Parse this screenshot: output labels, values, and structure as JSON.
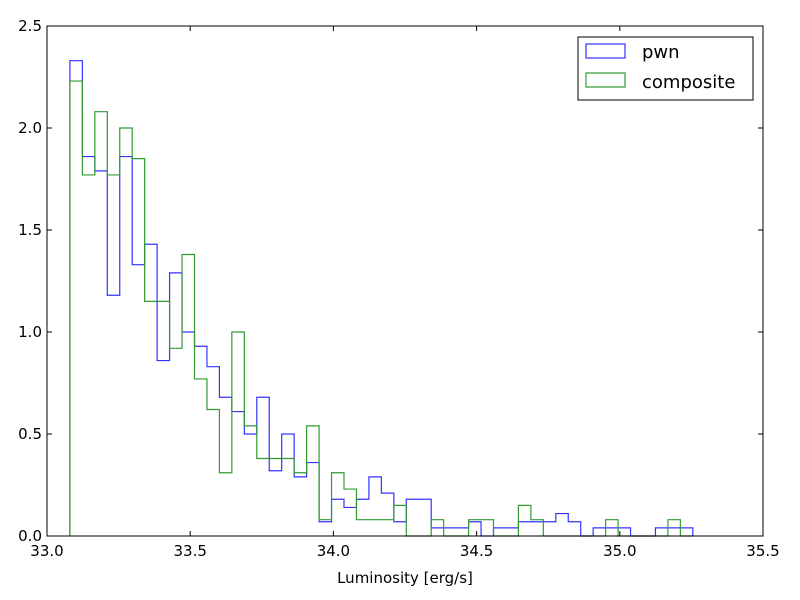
{
  "chart_data": {
    "type": "histogram",
    "xlabel": "Luminosity [erg/s]",
    "ylabel": "",
    "xlim": [
      33.0,
      35.5
    ],
    "ylim": [
      0.0,
      2.5
    ],
    "x_ticks": [
      33.0,
      33.5,
      34.0,
      34.5,
      35.0,
      35.5
    ],
    "x_tick_labels": [
      "33.0",
      "33.5",
      "34.0",
      "34.5",
      "35.0",
      "35.5"
    ],
    "y_ticks": [
      0.0,
      0.5,
      1.0,
      1.5,
      2.0,
      2.5
    ],
    "y_tick_labels": [
      "0.0",
      "0.5",
      "1.0",
      "1.5",
      "2.0",
      "2.5"
    ],
    "legend_position": "top-right",
    "series": [
      {
        "name": "pwn",
        "color": "#3333ff",
        "bin_start": 33.08,
        "bin_width": 0.0435,
        "values": [
          2.33,
          1.86,
          1.79,
          1.18,
          1.86,
          1.33,
          1.43,
          0.86,
          1.29,
          1.0,
          0.93,
          0.83,
          0.68,
          0.61,
          0.5,
          0.68,
          0.32,
          0.5,
          0.29,
          0.36,
          0.07,
          0.18,
          0.14,
          0.18,
          0.29,
          0.21,
          0.07,
          0.18,
          0.18,
          0.04,
          0.04,
          0.04,
          0.07,
          0.0,
          0.04,
          0.04,
          0.07,
          0.07,
          0.07,
          0.11,
          0.07,
          0.0,
          0.04,
          0.04,
          0.04,
          0.0,
          0.0,
          0.04,
          0.04,
          0.04
        ]
      },
      {
        "name": "composite",
        "color": "#339933",
        "bin_start": 33.08,
        "bin_width": 0.0435,
        "values": [
          2.23,
          1.77,
          2.08,
          1.77,
          2.0,
          1.85,
          1.15,
          1.15,
          0.92,
          1.38,
          0.77,
          0.62,
          0.31,
          1.0,
          0.54,
          0.38,
          0.38,
          0.38,
          0.31,
          0.54,
          0.08,
          0.31,
          0.23,
          0.08,
          0.08,
          0.08,
          0.15,
          0.0,
          0.0,
          0.08,
          0.0,
          0.0,
          0.08,
          0.08,
          0.0,
          0.0,
          0.15,
          0.08,
          0.0,
          0.0,
          0.0,
          0.0,
          0.0,
          0.08,
          0.0,
          0.0,
          0.0,
          0.0,
          0.08,
          0.0
        ]
      }
    ]
  }
}
